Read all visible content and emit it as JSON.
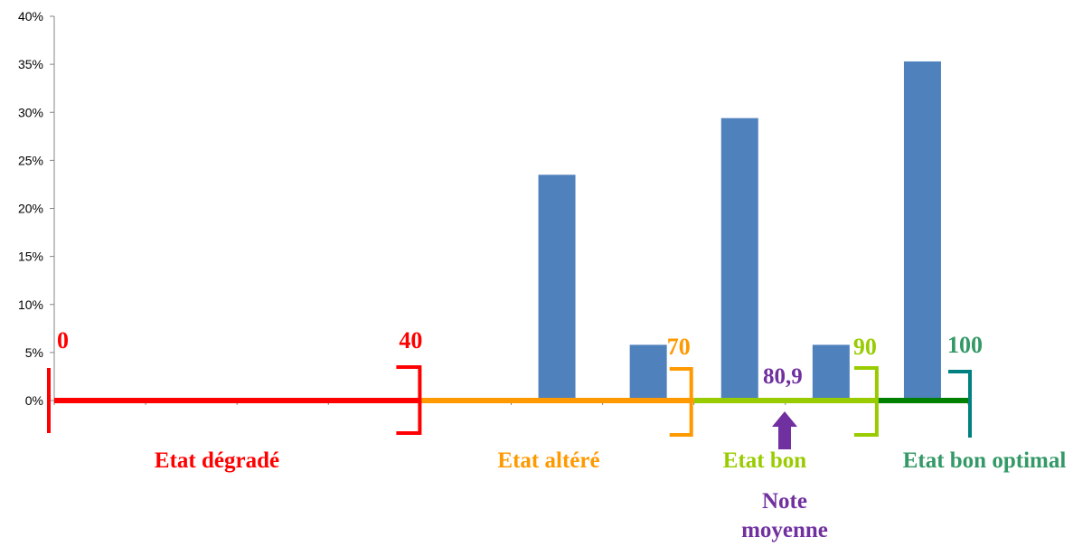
{
  "chart_data": {
    "type": "bar",
    "title": "",
    "xlabel": "",
    "ylabel": "",
    "ylim": [
      0,
      40
    ],
    "y_ticks": [
      "0%",
      "5%",
      "10%",
      "15%",
      "20%",
      "25%",
      "30%",
      "35%",
      "40%"
    ],
    "y_tick_values": [
      0,
      5,
      10,
      15,
      20,
      25,
      30,
      35,
      40
    ],
    "xlim": [
      0,
      100
    ],
    "bars": [
      {
        "x": 55,
        "value": 23.5
      },
      {
        "x": 65,
        "value": 5.8
      },
      {
        "x": 75,
        "value": 29.4
      },
      {
        "x": 85,
        "value": 5.8
      },
      {
        "x": 95,
        "value": 35.3
      }
    ],
    "bar_color": "#4F81BD",
    "grid": false,
    "zones": [
      {
        "label": "Etat dégradé",
        "from": 0,
        "to": 40,
        "color": "#FF0000"
      },
      {
        "label": "Etat altéré",
        "from": 40,
        "to": 70,
        "color": "#FF9900"
      },
      {
        "label": "Etat bon",
        "from": 70,
        "to": 90,
        "color": "#99CC00"
      },
      {
        "label": "Etat bon optimal",
        "from": 90,
        "to": 100,
        "color": "#339966"
      }
    ],
    "zone_line_colors": [
      "#FF0000",
      "#FF9900",
      "#99CC00",
      "#008000"
    ],
    "bound_colors": [
      "#FF0000",
      "#FF0000",
      "#FF9900",
      "#99CC00",
      "#339966"
    ],
    "bracket_colors": [
      "#FF0000",
      "#FF0000",
      "#FF9900",
      "#99CC00",
      "#008080"
    ],
    "boundaries": [
      {
        "value": 0,
        "label": "0"
      },
      {
        "value": 40,
        "label": "40"
      },
      {
        "value": 70,
        "label": "70"
      },
      {
        "value": 90,
        "label": "90"
      },
      {
        "value": 100,
        "label": "100"
      }
    ],
    "mean": {
      "value": 80.9,
      "label": "80,9",
      "caption_line1": "Note",
      "caption_line2": "moyenne",
      "color": "#7030A0"
    }
  }
}
